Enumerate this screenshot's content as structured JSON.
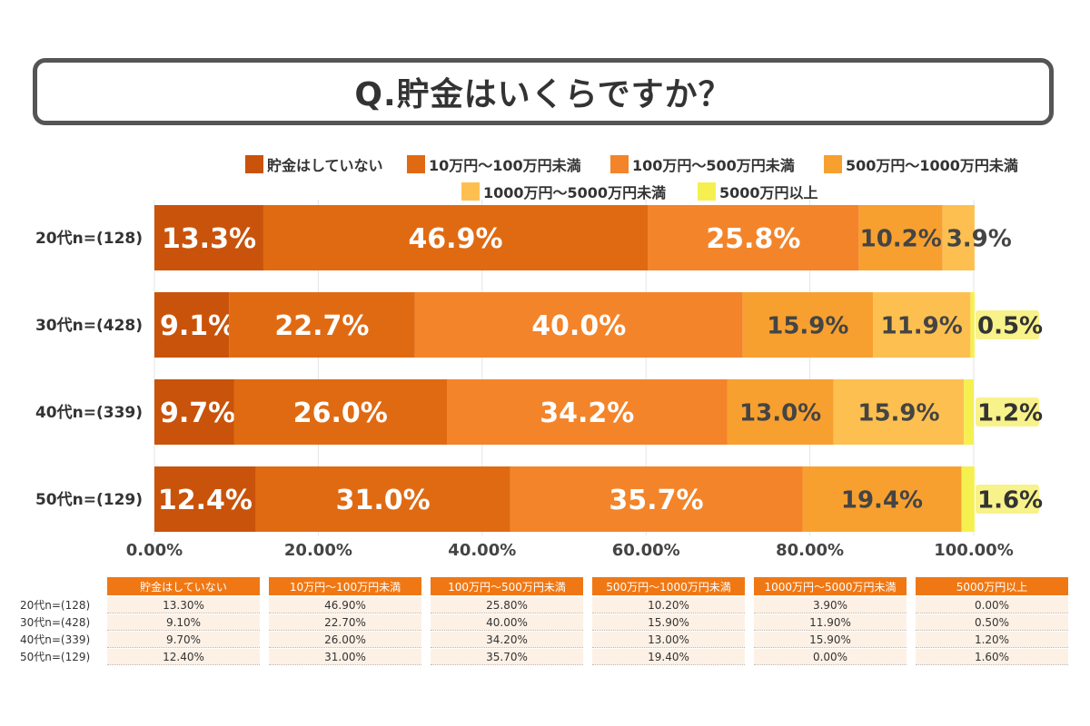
{
  "title": "Q.貯金はいくらですか？",
  "legend": [
    {
      "label": "貯金はしていない",
      "color": "#c9530a"
    },
    {
      "label": "10万円～100万円未満",
      "color": "#e06a12"
    },
    {
      "label": "100万円～500万円未満",
      "color": "#f3842a"
    },
    {
      "label": "500万円～1000万円未満",
      "color": "#f7a030"
    },
    {
      "label": "1000万円～5000万円未満",
      "color": "#fdc050"
    },
    {
      "label": "5000万円以上",
      "color": "#f5f050"
    }
  ],
  "chart_data": {
    "type": "bar",
    "orientation": "horizontal",
    "stacked": true,
    "title": "Q.貯金はいくらですか？",
    "categories": [
      "20代n=(128)",
      "30代n=(428)",
      "40代n=(339)",
      "50代n=(129)"
    ],
    "series": [
      {
        "name": "貯金はしていない",
        "values": [
          13.3,
          9.1,
          9.7,
          12.4
        ]
      },
      {
        "name": "10万円～100万円未満",
        "values": [
          46.9,
          22.7,
          26.0,
          31.0
        ]
      },
      {
        "name": "100万円～500万円未満",
        "values": [
          25.8,
          40.0,
          34.2,
          35.7
        ]
      },
      {
        "name": "500万円～1000万円未満",
        "values": [
          10.2,
          15.9,
          13.0,
          19.4
        ]
      },
      {
        "name": "1000万円～5000万円未満",
        "values": [
          3.9,
          11.9,
          15.9,
          0.0
        ]
      },
      {
        "name": "5000万円以上",
        "values": [
          0.0,
          0.5,
          1.2,
          1.6
        ]
      }
    ],
    "data_labels": [
      [
        "13.3%",
        "46.9%",
        "25.8%",
        "10.2%",
        "3.9%",
        ""
      ],
      [
        "9.1%",
        "22.7%",
        "40.0%",
        "15.9%",
        "11.9%",
        "0.5%"
      ],
      [
        "9.7%",
        "26.0%",
        "34.2%",
        "13.0%",
        "15.9%",
        "1.2%"
      ],
      [
        "12.4%",
        "31.0%",
        "35.7%",
        "19.4%",
        "",
        "1.6%"
      ]
    ],
    "xlim": [
      0,
      100
    ],
    "xticks": [
      "0.00%",
      "20.00%",
      "40.00%",
      "60.00%",
      "80.00%",
      "100.00%"
    ]
  },
  "table": {
    "headers": [
      "貯金はしていない",
      "10万円～100万円未満",
      "100万円～500万円未満",
      "500万円～1000万円未満",
      "1000万円～5000万円未満",
      "5000万円以上"
    ],
    "rows": [
      {
        "label": "20代n=(128)",
        "cells": [
          "13.30%",
          "46.90%",
          "25.80%",
          "10.20%",
          "3.90%",
          "0.00%"
        ]
      },
      {
        "label": "30代n=(428)",
        "cells": [
          "9.10%",
          "22.70%",
          "40.00%",
          "15.90%",
          "11.90%",
          "0.50%"
        ]
      },
      {
        "label": "40代n=(339)",
        "cells": [
          "9.70%",
          "26.00%",
          "34.20%",
          "13.00%",
          "15.90%",
          "1.20%"
        ]
      },
      {
        "label": "50代n=(129)",
        "cells": [
          "12.40%",
          "31.00%",
          "35.70%",
          "19.40%",
          "0.00%",
          "1.60%"
        ]
      }
    ]
  }
}
